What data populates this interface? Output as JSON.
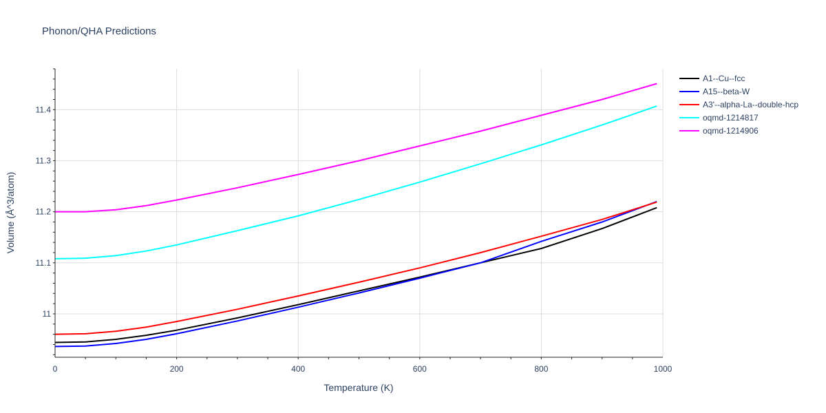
{
  "chart_data": {
    "type": "line",
    "title": "Phonon/QHA Predictions",
    "xlabel": "Temperature (K)",
    "ylabel": "Volume (Å^3/atom)",
    "xlim": [
      0,
      1000
    ],
    "ylim": [
      10.915,
      11.48
    ],
    "x_ticks": [
      0,
      200,
      400,
      600,
      800,
      1000
    ],
    "x_tick_labels": [
      "0",
      "200",
      "400",
      "600",
      "800",
      "1000"
    ],
    "y_ticks": [
      11,
      11.1,
      11.2,
      11.3,
      11.4
    ],
    "y_tick_labels": [
      "11",
      "11.1",
      "11.2",
      "11.3",
      "11.4"
    ],
    "grid": true,
    "legend_position": "top-right",
    "x": [
      0,
      50,
      100,
      150,
      200,
      300,
      400,
      500,
      600,
      700,
      800,
      900,
      990
    ],
    "series": [
      {
        "name": "A1--Cu--fcc",
        "color": "#000000",
        "values": [
          10.944,
          10.945,
          10.95,
          10.958,
          10.968,
          10.992,
          11.018,
          11.045,
          11.072,
          11.1,
          11.128,
          11.167,
          11.208
        ]
      },
      {
        "name": "A15--beta-W",
        "color": "#0000ff",
        "values": [
          10.936,
          10.937,
          10.942,
          10.95,
          10.961,
          10.986,
          11.013,
          11.041,
          11.07,
          11.1,
          11.142,
          11.18,
          11.22
        ]
      },
      {
        "name": "A3'--alpha-La--double-hcp",
        "color": "#ff0000",
        "values": [
          10.96,
          10.961,
          10.966,
          10.974,
          10.985,
          11.009,
          11.035,
          11.062,
          11.09,
          11.12,
          11.152,
          11.185,
          11.219
        ]
      },
      {
        "name": "oqmd-1214817",
        "color": "#00ffff",
        "values": [
          11.108,
          11.109,
          11.114,
          11.123,
          11.135,
          11.163,
          11.192,
          11.224,
          11.258,
          11.294,
          11.331,
          11.37,
          11.407
        ]
      },
      {
        "name": "oqmd-1214906",
        "color": "#ff00ff",
        "values": [
          11.2,
          11.2,
          11.204,
          11.212,
          11.223,
          11.247,
          11.273,
          11.3,
          11.329,
          11.358,
          11.389,
          11.42,
          11.451
        ]
      }
    ]
  }
}
